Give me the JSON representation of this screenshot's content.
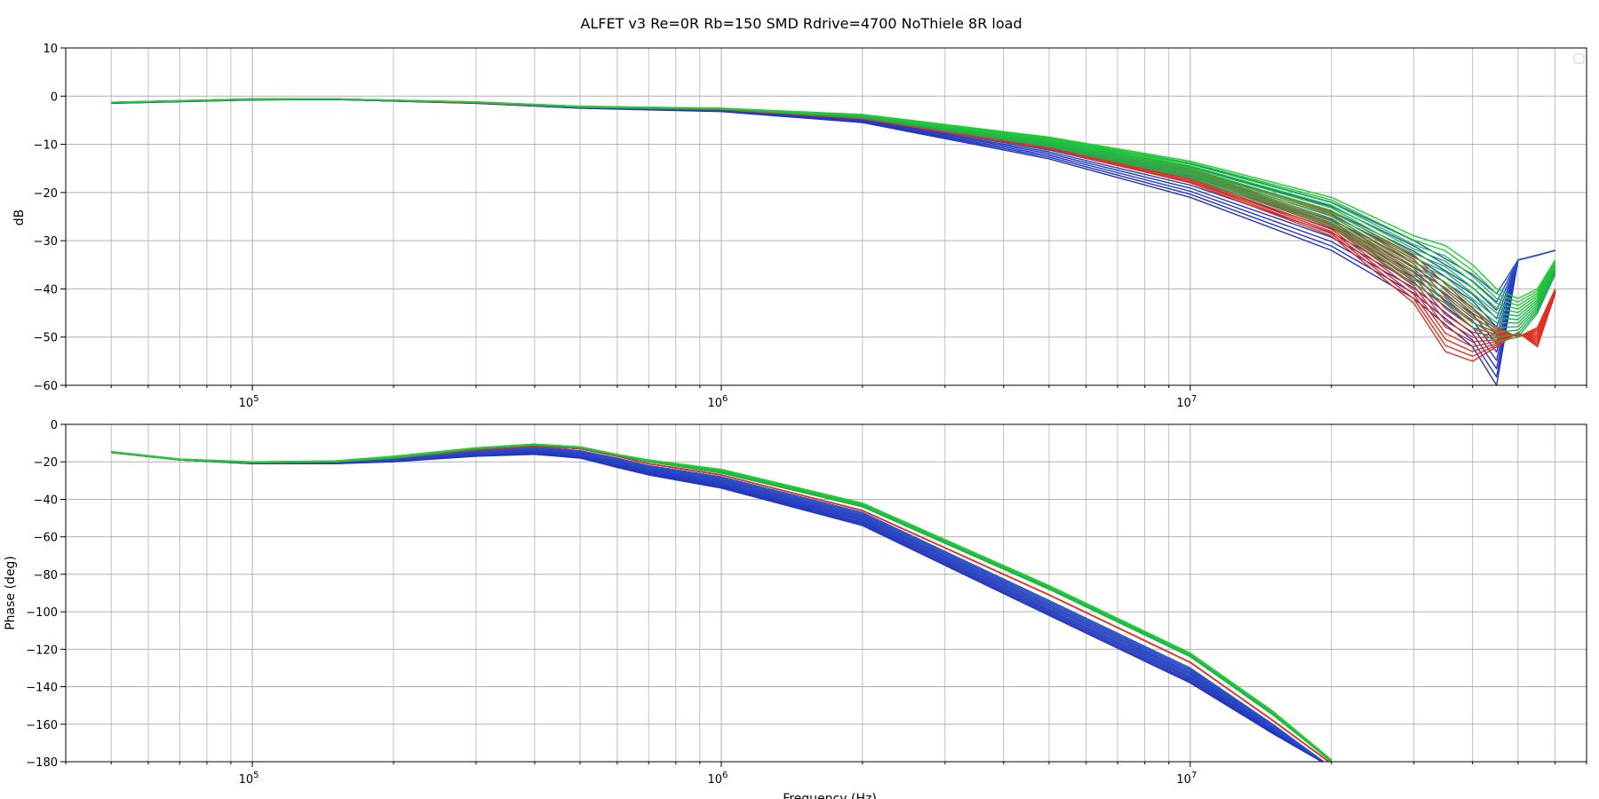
{
  "chart_data": {
    "type": "line",
    "title": "ALFET v3 Re=0R Rb=150 SMD Rdrive=4700 NoThiele 8R load",
    "xlabel": "Frequency (Hz)",
    "xscale": "log",
    "x_major_ticks": [
      {
        "base": "10",
        "exp": "5",
        "value": 100000
      },
      {
        "base": "10",
        "exp": "6",
        "value": 1000000
      },
      {
        "base": "10",
        "exp": "7",
        "value": 10000000
      }
    ],
    "legend": "top-right (empty)",
    "grid": true,
    "palette": {
      "low": "#2233bb",
      "mid": "#22aa55",
      "high": "#22cc33",
      "alt": "#dd3322"
    },
    "panels": [
      {
        "id": "magnitude",
        "ylabel": "dB",
        "ylim": [
          -60,
          10
        ],
        "xlim": [
          40000,
          70000000
        ],
        "yticks": [
          "10",
          "0",
          "−10",
          "−20",
          "−30",
          "−40",
          "−50",
          "−60"
        ],
        "ytick_values": [
          10,
          0,
          -10,
          -20,
          -30,
          -40,
          -50,
          -60
        ],
        "series": [
          {
            "role": "blue family (lowest)",
            "color": "#2233bb",
            "x": [
              50000,
              100000,
              150000,
              300000,
              500000,
              1000000,
              2000000,
              5000000,
              10000000,
              20000000,
              30000000,
              40000000,
              45000000,
              50000000,
              55000000,
              60000000
            ],
            "y": [
              -1.5,
              -0.8,
              -0.7,
              -1.5,
              -2.5,
              -3.2,
              -5.5,
              -13,
              -21,
              -32,
              -42,
              -52,
              -60,
              -34,
              -33,
              -32
            ]
          },
          {
            "role": "blue family (highest)",
            "color": "#2233bb",
            "x": [
              50000,
              100000,
              150000,
              300000,
              500000,
              1000000,
              2000000,
              5000000,
              10000000,
              20000000,
              30000000,
              40000000,
              45000000,
              50000000,
              55000000,
              60000000
            ],
            "y": [
              -1.3,
              -0.6,
              -0.6,
              -1.3,
              -2.2,
              -2.6,
              -4.0,
              -9.0,
              -14,
              -22,
              -30,
              -37,
              -41,
              -34,
              -33,
              -32
            ]
          },
          {
            "role": "red family (lowest)",
            "color": "#dd3322",
            "x": [
              50000,
              100000,
              150000,
              300000,
              500000,
              1000000,
              2000000,
              5000000,
              10000000,
              20000000,
              30000000,
              35000000,
              40000000,
              45000000,
              50000000,
              55000000,
              60000000
            ],
            "y": [
              -1.4,
              -0.7,
              -0.6,
              -1.4,
              -2.3,
              -2.8,
              -4.7,
              -11,
              -18,
              -29,
              -43,
              -53,
              -55,
              -52,
              -49,
              -52,
              -41
            ]
          },
          {
            "role": "red family (highest)",
            "color": "#dd3322",
            "x": [
              50000,
              100000,
              150000,
              300000,
              500000,
              1000000,
              2000000,
              5000000,
              10000000,
              20000000,
              30000000,
              35000000,
              40000000,
              45000000,
              50000000,
              55000000,
              60000000
            ],
            "y": [
              -1.3,
              -0.6,
              -0.6,
              -1.3,
              -2.2,
              -2.6,
              -4.2,
              -9.5,
              -15,
              -24,
              -33,
              -39,
              -44,
              -48,
              -50,
              -48,
              -40
            ]
          },
          {
            "role": "green family (lowest)",
            "color": "#22cc33",
            "x": [
              50000,
              100000,
              150000,
              300000,
              500000,
              1000000,
              2000000,
              5000000,
              10000000,
              20000000,
              30000000,
              35000000,
              40000000,
              45000000,
              50000000,
              55000000,
              60000000
            ],
            "y": [
              -1.4,
              -0.7,
              -0.6,
              -1.3,
              -2.3,
              -2.7,
              -4.5,
              -10.5,
              -17,
              -27,
              -39,
              -43,
              -48,
              -51,
              -50,
              -45,
              -37
            ]
          },
          {
            "role": "green family (highest)",
            "color": "#22cc33",
            "x": [
              50000,
              100000,
              150000,
              300000,
              500000,
              1000000,
              2000000,
              5000000,
              10000000,
              20000000,
              30000000,
              35000000,
              40000000,
              45000000,
              50000000,
              55000000,
              60000000
            ],
            "y": [
              -1.3,
              -0.6,
              -0.6,
              -1.2,
              -2.1,
              -2.5,
              -3.8,
              -8.5,
              -13.5,
              -21,
              -29,
              -31,
              -35,
              -40,
              -42,
              -40,
              -34
            ]
          }
        ]
      },
      {
        "id": "phase",
        "ylabel": "Phase (deg)",
        "ylim": [
          -180,
          0
        ],
        "xlim": [
          40000,
          70000000
        ],
        "yticks": [
          "0",
          "−20",
          "−40",
          "−60",
          "−80",
          "−100",
          "−120",
          "−140",
          "−160",
          "−180"
        ],
        "ytick_values": [
          0,
          -20,
          -40,
          -60,
          -80,
          -100,
          -120,
          -140,
          -160,
          -180
        ],
        "series": [
          {
            "role": "blue family (lowest)",
            "color": "#2233bb",
            "x": [
              50000,
              70000,
              100000,
              150000,
              200000,
              300000,
              400000,
              500000,
              600000,
              700000,
              1000000,
              2000000,
              5000000,
              10000000,
              15000000,
              20000000
            ],
            "y": [
              -15,
              -19,
              -21,
              -21,
              -20,
              -17,
              -16,
              -18,
              -23,
              -27,
              -34,
              -54,
              -102,
              -138,
              -165,
              -183
            ]
          },
          {
            "role": "blue family (highest)",
            "color": "#2233bb",
            "x": [
              50000,
              70000,
              100000,
              150000,
              200000,
              300000,
              400000,
              500000,
              600000,
              700000,
              1000000,
              2000000,
              5000000,
              10000000,
              15000000,
              20000000
            ],
            "y": [
              -15,
              -19,
              -20.5,
              -20,
              -18,
              -14,
              -12,
              -14,
              -18,
              -22,
              -28,
              -47,
              -94,
              -130,
              -160,
              -183
            ]
          },
          {
            "role": "red family",
            "color": "#dd3322",
            "x": [
              50000,
              70000,
              100000,
              150000,
              200000,
              300000,
              400000,
              500000,
              600000,
              700000,
              1000000,
              2000000,
              5000000,
              10000000,
              15000000,
              20000000
            ],
            "y": [
              -15,
              -19,
              -20.5,
              -20,
              -18,
              -13.5,
              -11.5,
              -13,
              -17,
              -21,
              -27,
              -46,
              -91,
              -127,
              -158,
              -181
            ]
          },
          {
            "role": "green family (lowest)",
            "color": "#22cc33",
            "x": [
              50000,
              70000,
              100000,
              150000,
              200000,
              300000,
              400000,
              500000,
              600000,
              700000,
              1000000,
              2000000,
              5000000,
              10000000,
              15000000,
              20000000
            ],
            "y": [
              -15,
              -19,
              -20.5,
              -20,
              -18,
              -13,
              -11,
              -12.5,
              -16.5,
              -20,
              -26,
              -44,
              -88,
              -124,
              -155,
              -180
            ]
          },
          {
            "role": "green family (highest)",
            "color": "#22cc33",
            "x": [
              50000,
              70000,
              100000,
              150000,
              200000,
              300000,
              400000,
              500000,
              600000,
              700000,
              1000000,
              2000000,
              5000000,
              10000000,
              15000000,
              20000000
            ],
            "y": [
              -14.5,
              -18.5,
              -20,
              -19.5,
              -17,
              -12.5,
              -10.5,
              -12,
              -16,
              -19,
              -24,
              -42,
              -86,
              -122,
              -153,
              -179
            ]
          }
        ]
      }
    ]
  }
}
